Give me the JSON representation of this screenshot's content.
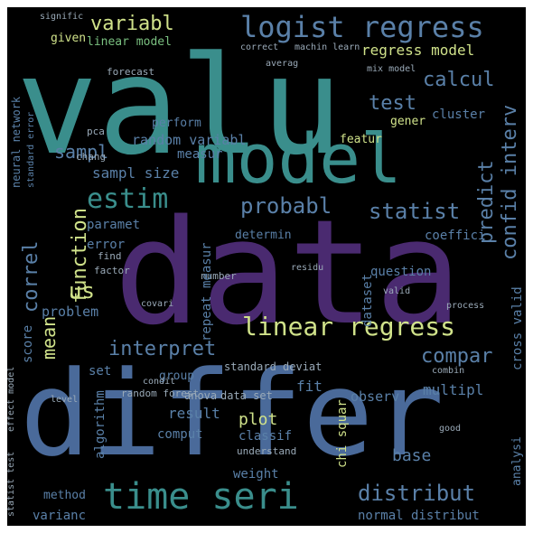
{
  "palette": {
    "teal": "#3a8e8c",
    "blue": "#4a6a9a",
    "purple": "#4a2a70",
    "green": "#7ac080",
    "lime": "#d0e28a",
    "steel": "#5a80a8",
    "grey": "#9aaab8"
  },
  "words": [
    {
      "text": "valu",
      "size": 150,
      "color": "teal"
    },
    {
      "text": "data",
      "size": 160,
      "color": "purple"
    },
    {
      "text": "differ",
      "size": 130,
      "color": "blue"
    },
    {
      "text": "model",
      "size": 76,
      "color": "teal"
    },
    {
      "text": "time seri",
      "size": 40,
      "color": "teal"
    },
    {
      "text": "logist regress",
      "size": 32,
      "color": "steel"
    },
    {
      "text": "linear regress",
      "size": 28,
      "color": "lime"
    },
    {
      "text": "estim",
      "size": 30,
      "color": "teal"
    },
    {
      "text": "probabl",
      "size": 24,
      "color": "steel"
    },
    {
      "text": "statist",
      "size": 24,
      "color": "steel"
    },
    {
      "text": "distribut",
      "size": 24,
      "color": "steel"
    },
    {
      "text": "interpret",
      "size": 22,
      "color": "steel"
    },
    {
      "text": "compar",
      "size": 22,
      "color": "steel"
    },
    {
      "text": "variabl",
      "size": 22,
      "color": "lime"
    },
    {
      "text": "calcul",
      "size": 22,
      "color": "steel"
    },
    {
      "text": "test",
      "size": 22,
      "color": "steel"
    },
    {
      "text": "sampl",
      "size": 20,
      "color": "steel"
    },
    {
      "text": "sampl size",
      "size": 16,
      "color": "steel"
    },
    {
      "text": "random variabl",
      "size": 15,
      "color": "steel"
    },
    {
      "text": "us",
      "size": 24,
      "color": "lime"
    },
    {
      "text": "regress model",
      "size": 16,
      "color": "lime"
    },
    {
      "text": "linear model",
      "size": 13,
      "color": "green"
    },
    {
      "text": "given",
      "size": 13,
      "color": "lime"
    },
    {
      "text": "featur",
      "size": 13,
      "color": "lime"
    },
    {
      "text": "cluster",
      "size": 14,
      "color": "steel"
    },
    {
      "text": "gener",
      "size": 13,
      "color": "lime"
    },
    {
      "text": "perform",
      "size": 13,
      "color": "steel"
    },
    {
      "text": "measur",
      "size": 14,
      "color": "steel"
    },
    {
      "text": "paramet",
      "size": 14,
      "color": "steel"
    },
    {
      "text": "error",
      "size": 14,
      "color": "steel"
    },
    {
      "text": "determin",
      "size": 13,
      "color": "steel"
    },
    {
      "text": "coeffici",
      "size": 14,
      "color": "steel"
    },
    {
      "text": "question",
      "size": 14,
      "color": "steel"
    },
    {
      "text": "problem",
      "size": 15,
      "color": "steel"
    },
    {
      "text": "group",
      "size": 13,
      "color": "steel"
    },
    {
      "text": "fit",
      "size": 16,
      "color": "steel"
    },
    {
      "text": "observ",
      "size": 15,
      "color": "steel"
    },
    {
      "text": "multipl",
      "size": 16,
      "color": "steel"
    },
    {
      "text": "result",
      "size": 16,
      "color": "steel"
    },
    {
      "text": "plot",
      "size": 18,
      "color": "lime"
    },
    {
      "text": "comput",
      "size": 14,
      "color": "steel"
    },
    {
      "text": "classif",
      "size": 14,
      "color": "steel"
    },
    {
      "text": "base",
      "size": 18,
      "color": "steel"
    },
    {
      "text": "weight",
      "size": 14,
      "color": "steel"
    },
    {
      "text": "method",
      "size": 13,
      "color": "steel"
    },
    {
      "text": "varianc",
      "size": 14,
      "color": "steel"
    },
    {
      "text": "normal distribut",
      "size": 14,
      "color": "steel"
    },
    {
      "text": "set",
      "size": 14,
      "color": "steel"
    },
    {
      "text": "random forest",
      "size": 11,
      "color": "grey"
    },
    {
      "text": "data set",
      "size": 12,
      "color": "grey"
    },
    {
      "text": "standard deviat",
      "size": 12,
      "color": "grey"
    },
    {
      "text": "anova",
      "size": 12,
      "color": "grey"
    },
    {
      "text": "forecast",
      "size": 11,
      "color": "grey"
    },
    {
      "text": "pca",
      "size": 11,
      "color": "grey"
    },
    {
      "text": "chang",
      "size": 11,
      "color": "grey"
    },
    {
      "text": "find",
      "size": 11,
      "color": "grey"
    },
    {
      "text": "factor",
      "size": 11,
      "color": "grey"
    },
    {
      "text": "number",
      "size": 11,
      "color": "grey"
    },
    {
      "text": "level",
      "size": 10,
      "color": "grey"
    },
    {
      "text": "understand",
      "size": 11,
      "color": "grey"
    },
    {
      "text": "condit",
      "size": 10,
      "color": "grey"
    },
    {
      "text": "signific",
      "size": 10,
      "color": "grey"
    },
    {
      "text": "mix model",
      "size": 10,
      "color": "grey"
    },
    {
      "text": "correct",
      "size": 10,
      "color": "grey"
    },
    {
      "text": "machin learn",
      "size": 10,
      "color": "grey"
    },
    {
      "text": "averag",
      "size": 10,
      "color": "grey"
    },
    {
      "text": "residu",
      "size": 10,
      "color": "grey"
    },
    {
      "text": "valid",
      "size": 10,
      "color": "grey"
    },
    {
      "text": "process",
      "size": 10,
      "color": "grey"
    },
    {
      "text": "combin",
      "size": 10,
      "color": "grey"
    },
    {
      "text": "good",
      "size": 10,
      "color": "grey"
    },
    {
      "text": "covari",
      "size": 10,
      "color": "grey"
    },
    {
      "text": "dataset",
      "size": 14,
      "color": "steel",
      "v": true
    },
    {
      "text": "confid interv",
      "size": 22,
      "color": "steel",
      "v": true
    },
    {
      "text": "predict",
      "size": 22,
      "color": "steel",
      "v": true
    },
    {
      "text": "function",
      "size": 22,
      "color": "lime",
      "v": true
    },
    {
      "text": "correl",
      "size": 22,
      "color": "steel",
      "v": true
    },
    {
      "text": "mean",
      "size": 20,
      "color": "lime",
      "v": true
    },
    {
      "text": "score",
      "size": 14,
      "color": "steel",
      "v": true
    },
    {
      "text": "repeat measur",
      "size": 14,
      "color": "steel",
      "v": true
    },
    {
      "text": "cross valid",
      "size": 14,
      "color": "steel",
      "v": true
    },
    {
      "text": "algorithm",
      "size": 14,
      "color": "steel",
      "v": true
    },
    {
      "text": "chi squar",
      "size": 14,
      "color": "lime",
      "v": true
    },
    {
      "text": "analysi",
      "size": 13,
      "color": "steel",
      "v": true
    },
    {
      "text": "neural network",
      "size": 12,
      "color": "steel",
      "v": true
    },
    {
      "text": "standard error",
      "size": 10,
      "color": "steel",
      "v": true
    },
    {
      "text": "effect model",
      "size": 10,
      "color": "grey",
      "v": true
    },
    {
      "text": "statist test",
      "size": 10,
      "color": "grey",
      "v": true
    }
  ]
}
